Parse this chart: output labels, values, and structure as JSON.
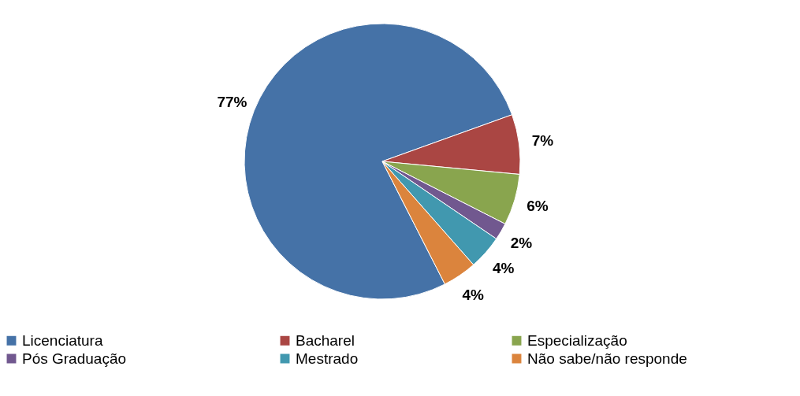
{
  "chart_data": {
    "type": "pie",
    "categories": [
      "Licenciatura",
      "Bacharel",
      "Especialização",
      "Pós Graduação",
      "Mestrado",
      "Não sabe/não responde"
    ],
    "values": [
      77,
      7,
      6,
      2,
      4,
      4
    ],
    "colors": [
      "#4572a7",
      "#aa4643",
      "#89a54e",
      "#71588f",
      "#4198af",
      "#db843d"
    ],
    "value_labels": [
      "77%",
      "7%",
      "6%",
      "2%",
      "4%",
      "4%"
    ],
    "legend": "bottom"
  }
}
